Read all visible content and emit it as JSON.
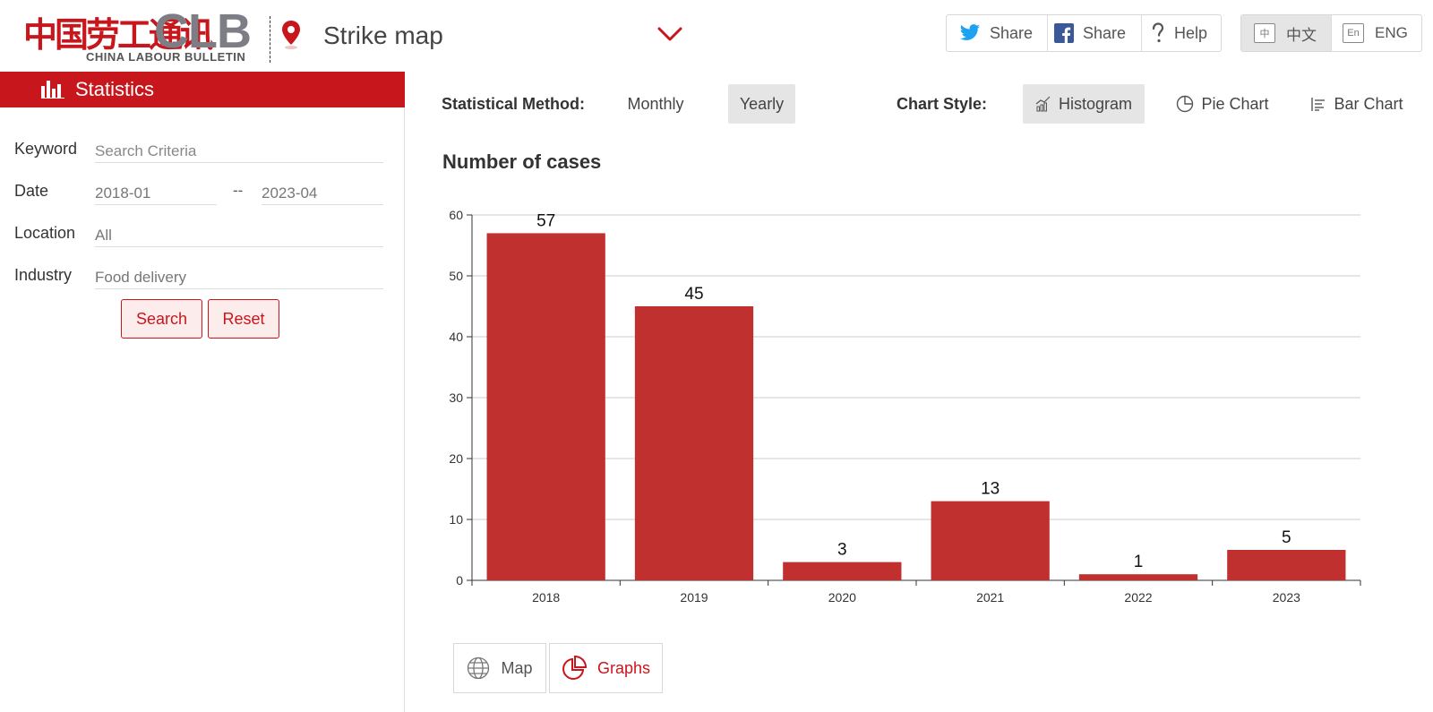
{
  "header": {
    "logo_chinese": "中国劳工通讯",
    "logo_clb": "CLB",
    "logo_sub": "CHINA LABOUR BULLETIN",
    "app_title": "Strike map",
    "share_twitter": "Share",
    "share_facebook": "Share",
    "help": "Help",
    "lang_zh": "中文",
    "lang_zh_glyph": "中",
    "lang_en": "ENG",
    "lang_en_glyph": "En"
  },
  "sidebar": {
    "title": "Statistics",
    "keyword_label": "Keyword",
    "keyword_placeholder": "Search Criteria",
    "keyword_value": "",
    "date_label": "Date",
    "date_from": "2018-01",
    "date_sep": "--",
    "date_to": "2023-04",
    "location_label": "Location",
    "location_value": "All",
    "industry_label": "Industry",
    "industry_value": "Food delivery",
    "search_button": "Search",
    "reset_button": "Reset"
  },
  "toolbar": {
    "method_label": "Statistical Method:",
    "monthly": "Monthly",
    "yearly": "Yearly",
    "selected_method": "Yearly",
    "style_label": "Chart Style:",
    "histogram": "Histogram",
    "pie_chart": "Pie Chart",
    "bar_chart": "Bar Chart",
    "selected_style": "Histogram"
  },
  "chart_data": {
    "type": "bar",
    "title": "Number of cases",
    "categories": [
      "2018",
      "2019",
      "2020",
      "2021",
      "2022",
      "2023"
    ],
    "values": [
      57,
      45,
      3,
      13,
      1,
      5
    ],
    "ylim": [
      0,
      60
    ],
    "yticks": [
      0,
      10,
      20,
      30,
      40,
      50,
      60
    ],
    "grid": true,
    "bar_color": "#c0302f"
  },
  "bottom_nav": {
    "map": "Map",
    "graphs": "Graphs",
    "selected": "Graphs"
  },
  "colors": {
    "accent": "#c8161d"
  }
}
